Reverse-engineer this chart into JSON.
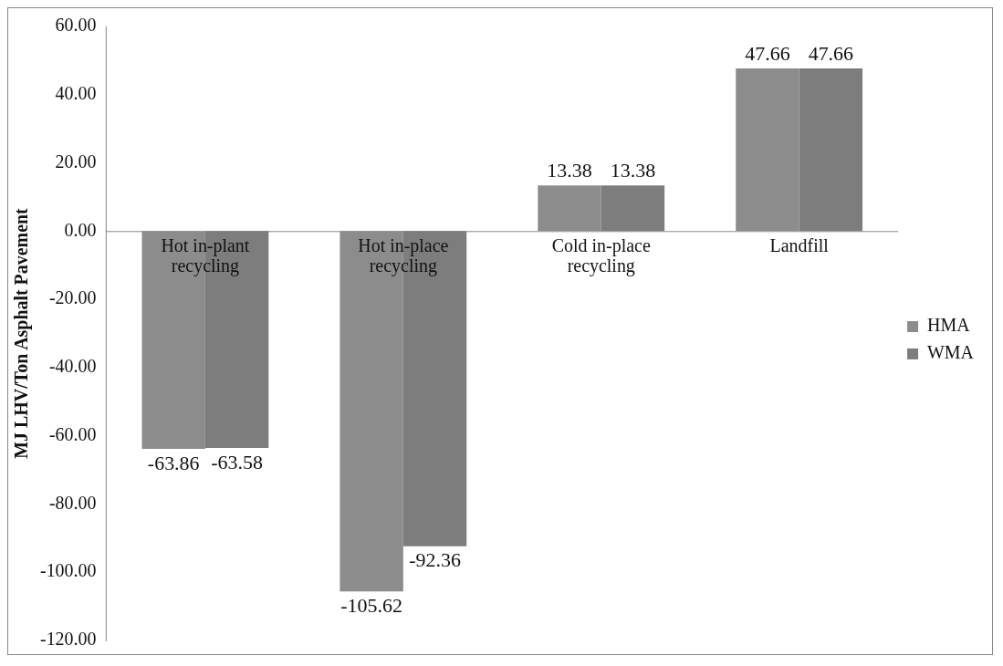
{
  "chart_data": {
    "type": "bar",
    "ylabel": "MJ LHV/Ton Asphalt Pavement",
    "categories": [
      "Hot in-plant recycling",
      "Hot in-place recycling",
      "Cold in-place recycling",
      "Landfill"
    ],
    "series": [
      {
        "name": "HMA",
        "color": "#8c8c8c",
        "values": [
          -63.86,
          -105.62,
          13.38,
          47.66
        ]
      },
      {
        "name": "WMA",
        "color": "#7d7d7d",
        "values": [
          -63.58,
          -92.36,
          13.38,
          47.66
        ]
      }
    ],
    "ylim": [
      -120,
      60
    ],
    "yticks": [
      {
        "value": -120,
        "label": "-120.00"
      },
      {
        "value": -100,
        "label": "-100.00"
      },
      {
        "value": -80,
        "label": "-80.00"
      },
      {
        "value": -60,
        "label": "-60.00"
      },
      {
        "value": -40,
        "label": "-40.00"
      },
      {
        "value": -20,
        "label": "-20.00"
      },
      {
        "value": 0,
        "label": "0.00"
      },
      {
        "value": 20,
        "label": "20.00"
      },
      {
        "value": 40,
        "label": "40.00"
      },
      {
        "value": 60,
        "label": "60.00"
      }
    ],
    "grid": false,
    "legend": "right",
    "data_labels": true
  }
}
